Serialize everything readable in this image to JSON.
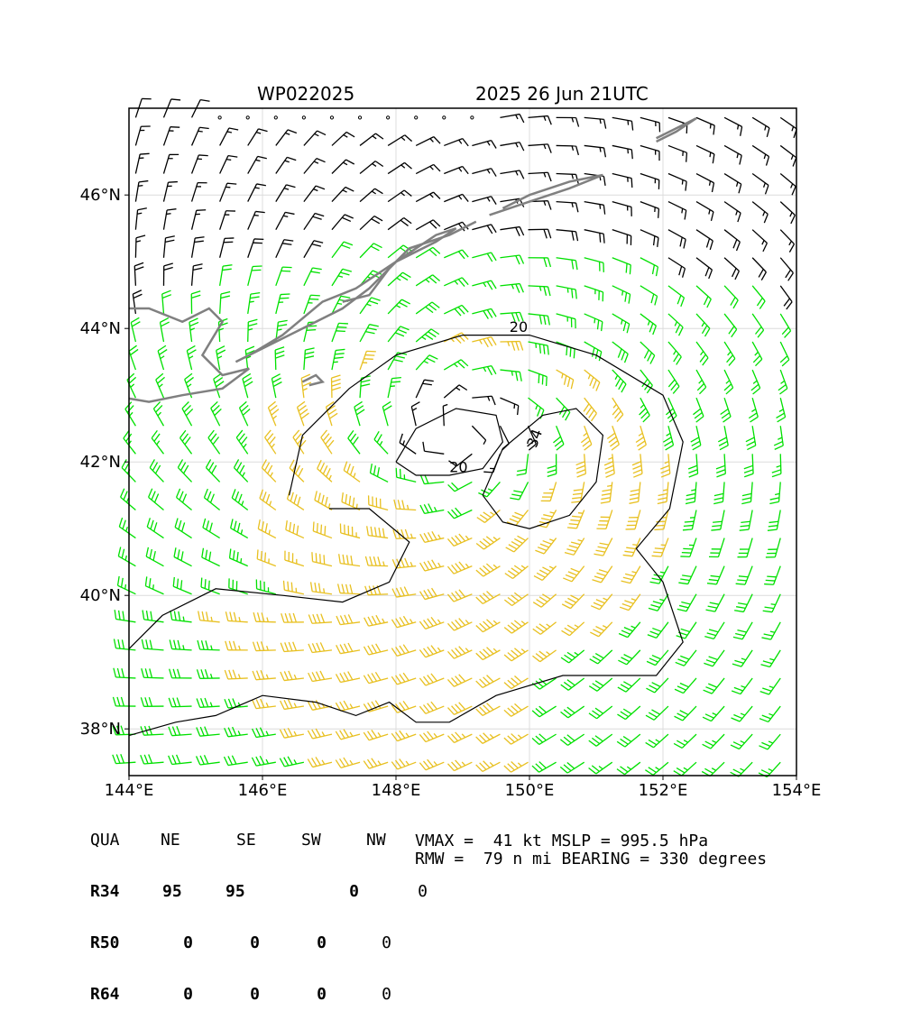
{
  "header": {
    "storm_id": "WP022025",
    "datetime": "2025 26 Jun 21UTC"
  },
  "map": {
    "lon_range": [
      144,
      154
    ],
    "lat_range": [
      37.3,
      47.3
    ],
    "lon_ticks": [
      "144°E",
      "146°E",
      "148°E",
      "150°E",
      "152°E",
      "154°E"
    ],
    "lat_ticks": [
      "38°N",
      "40°N",
      "42°N",
      "44°N",
      "46°N"
    ],
    "contour_labels": [
      "20",
      "20",
      "34"
    ],
    "colors": {
      "below_34": "#000000",
      "gale_34kt": "#00e000",
      "storm_50kt": "#e8c020",
      "coastline": "#808080"
    }
  },
  "wind_radii": {
    "headers": [
      "QUA",
      "NE",
      "SE",
      "SW",
      "NW"
    ],
    "rows": [
      [
        "R34",
        "95",
        "95",
        "0",
        "0"
      ],
      [
        "R50",
        "0",
        "0",
        "0",
        "0"
      ],
      [
        "R64",
        "0",
        "0",
        "0",
        "0"
      ]
    ]
  },
  "stats": {
    "line1": "VMAX =  41 kt MSLP = 995.5 hPa",
    "line2": "RMW =  79 n mi BEARING = 330 degrees"
  }
}
